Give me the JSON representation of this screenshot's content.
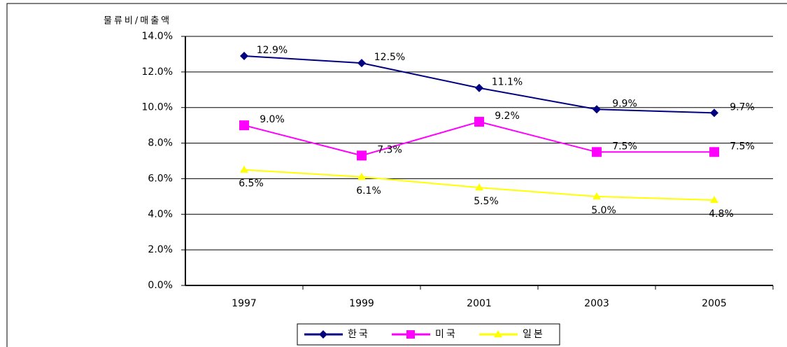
{
  "chart_data": {
    "type": "line",
    "y_axis_label": "물류비/매출액",
    "categories": [
      "1997",
      "1999",
      "2001",
      "2003",
      "2005"
    ],
    "series": [
      {
        "name": "한국",
        "color": "#000080",
        "marker": "diamond",
        "values": [
          12.9,
          12.5,
          11.1,
          9.9,
          9.7
        ],
        "value_labels": [
          "12.9%",
          "12.5%",
          "11.1%",
          "9.9%",
          "9.7%"
        ]
      },
      {
        "name": "미국",
        "color": "#ff00ff",
        "marker": "square",
        "values": [
          9.0,
          7.3,
          9.2,
          7.5,
          7.5
        ],
        "value_labels": [
          "9.0%",
          "7.3%",
          "9.2%",
          "7.5%",
          "7.5%"
        ]
      },
      {
        "name": "일본",
        "color": "#ffff00",
        "marker": "triangle",
        "values": [
          6.5,
          6.1,
          5.5,
          5.0,
          4.8
        ],
        "value_labels": [
          "6.5%",
          "6.1%",
          "5.5%",
          "5.0%",
          "4.8%"
        ]
      }
    ],
    "ylim": [
      0,
      14
    ],
    "yticks": [
      {
        "value": 0,
        "label": "0.0%"
      },
      {
        "value": 2,
        "label": "2.0%"
      },
      {
        "value": 4,
        "label": "4.0%"
      },
      {
        "value": 6,
        "label": "6.0%"
      },
      {
        "value": 8,
        "label": "8.0%"
      },
      {
        "value": 10,
        "label": "10.0%"
      },
      {
        "value": 12,
        "label": "12.0%"
      },
      {
        "value": 14,
        "label": "14.0%"
      }
    ],
    "grid": true,
    "legend": "bottom"
  }
}
